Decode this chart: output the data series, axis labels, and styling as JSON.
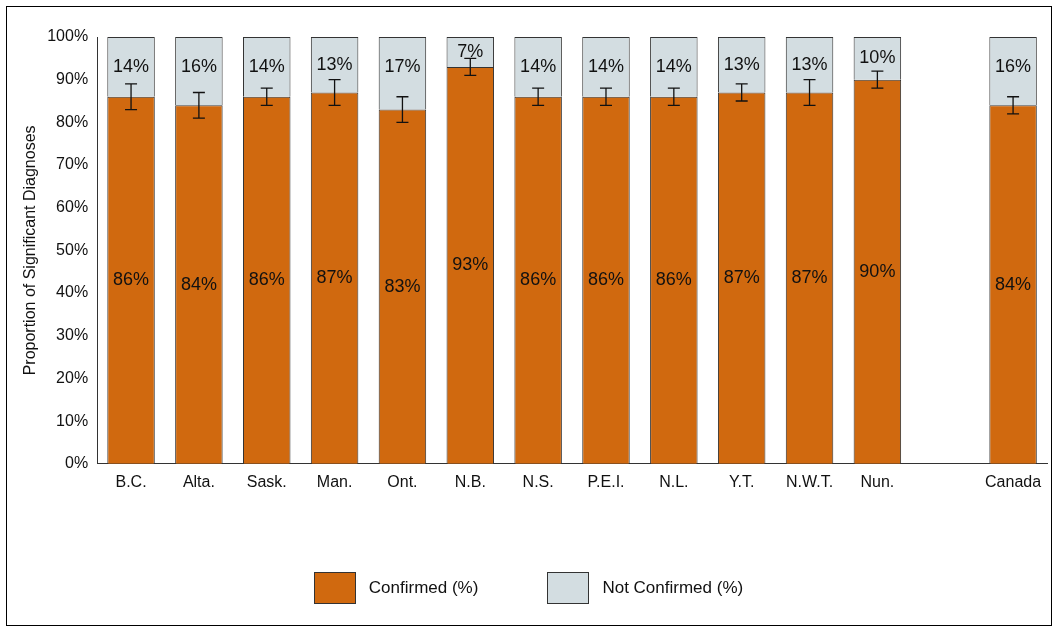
{
  "chart_data": {
    "type": "bar",
    "stacked": true,
    "ylabel": "Proportion of Significant Diagnoses",
    "categories": [
      "B.C.",
      "Alta.",
      "Sask.",
      "Man.",
      "Ont.",
      "N.B.",
      "N.S.",
      "P.E.I.",
      "N.L.",
      "Y.T.",
      "N.W.T.",
      "Nun.",
      null,
      "Canada"
    ],
    "series": [
      {
        "name": "Confirmed (%)",
        "color": "#d0690f",
        "values": [
          86,
          84,
          86,
          87,
          83,
          93,
          86,
          86,
          86,
          87,
          87,
          90,
          null,
          84
        ],
        "errors": [
          3,
          3,
          2,
          3,
          3,
          2,
          2,
          2,
          2,
          2,
          3,
          2,
          null,
          2
        ],
        "value_labels": [
          "86%",
          "84%",
          "86%",
          "87%",
          "83%",
          "93%",
          "86%",
          "86%",
          "86%",
          "87%",
          "87%",
          "90%",
          null,
          "84%"
        ]
      },
      {
        "name": "Not Confirmed (%)",
        "color": "#d3dde1",
        "values": [
          14,
          16,
          14,
          13,
          17,
          7,
          14,
          14,
          14,
          13,
          13,
          10,
          null,
          16
        ],
        "value_labels": [
          "14%",
          "16%",
          "14%",
          "13%",
          "17%",
          "7%",
          "14%",
          "14%",
          "14%",
          "13%",
          "13%",
          "10%",
          null,
          "16%"
        ]
      }
    ],
    "ylim": [
      0,
      100
    ],
    "yticks": [
      {
        "value": 0,
        "label": "0%"
      },
      {
        "value": 10,
        "label": "10%"
      },
      {
        "value": 20,
        "label": "20%"
      },
      {
        "value": 30,
        "label": "30%"
      },
      {
        "value": 40,
        "label": "40%"
      },
      {
        "value": 50,
        "label": "50%"
      },
      {
        "value": 60,
        "label": "60%"
      },
      {
        "value": 70,
        "label": "70%"
      },
      {
        "value": 80,
        "label": "80%"
      },
      {
        "value": 90,
        "label": "90%"
      },
      {
        "value": 100,
        "label": "100%"
      }
    ],
    "grid": false,
    "legend": "bottom"
  }
}
